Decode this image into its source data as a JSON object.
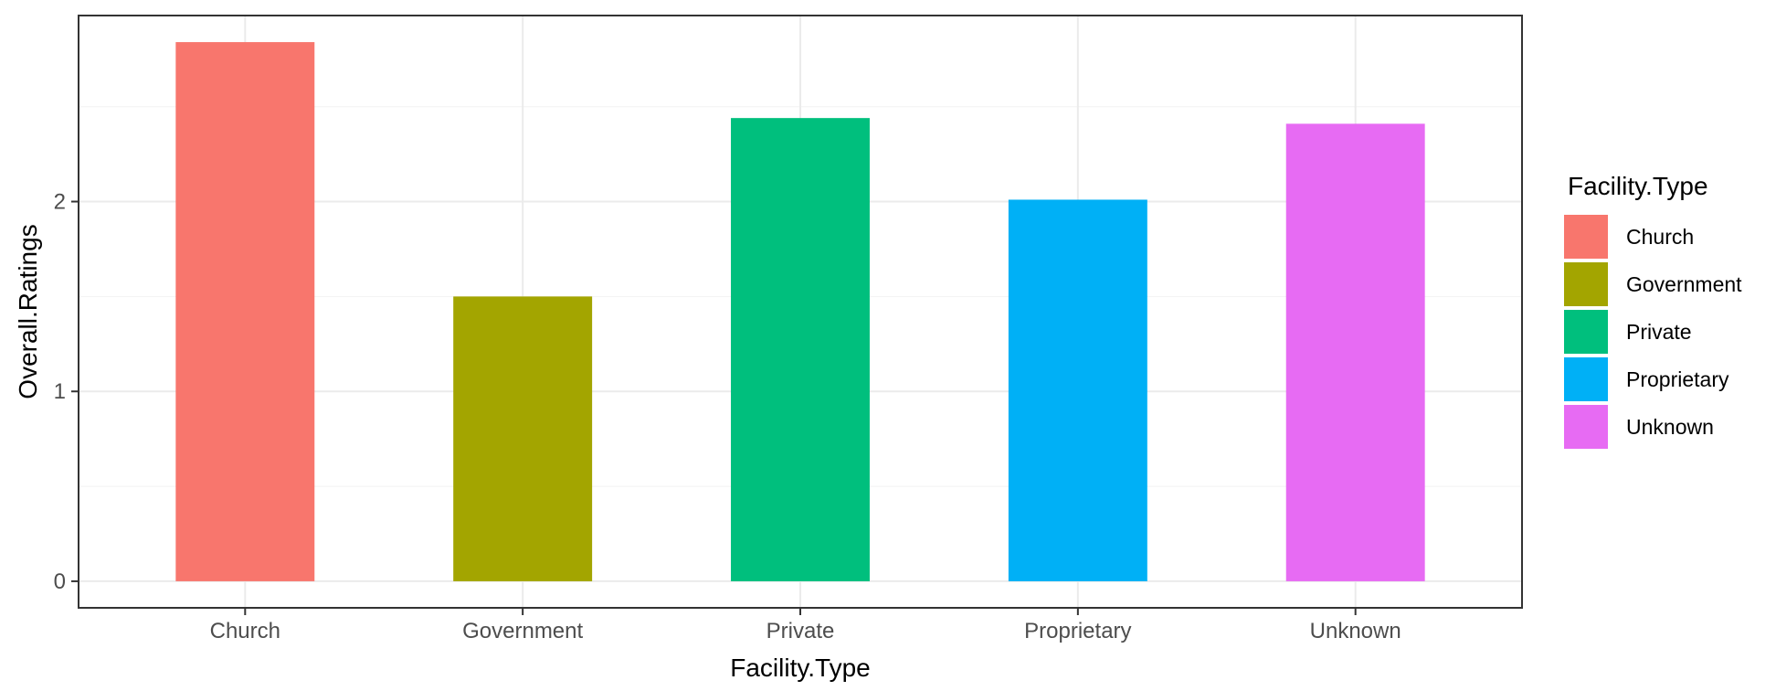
{
  "chart_data": {
    "type": "bar",
    "categories": [
      "Church",
      "Government",
      "Private",
      "Proprietary",
      "Unknown"
    ],
    "values": [
      2.84,
      1.5,
      2.44,
      2.01,
      2.41
    ],
    "colors": [
      "#F8766D",
      "#A3A500",
      "#00BF7D",
      "#00B0F6",
      "#E76BF3"
    ],
    "xlabel": "Facility.Type",
    "ylabel": "Overall.Ratings",
    "ylim": [
      -0.14,
      2.98
    ],
    "yticks": [
      0,
      1,
      2
    ],
    "ytick_labels": [
      "0",
      "1",
      "2"
    ],
    "y_minor_gridlines": [
      0.5,
      1.5,
      2.5
    ],
    "grid": true,
    "legend": {
      "title": "Facility.Type",
      "placement": "right",
      "items": [
        "Church",
        "Government",
        "Private",
        "Proprietary",
        "Unknown"
      ]
    }
  }
}
